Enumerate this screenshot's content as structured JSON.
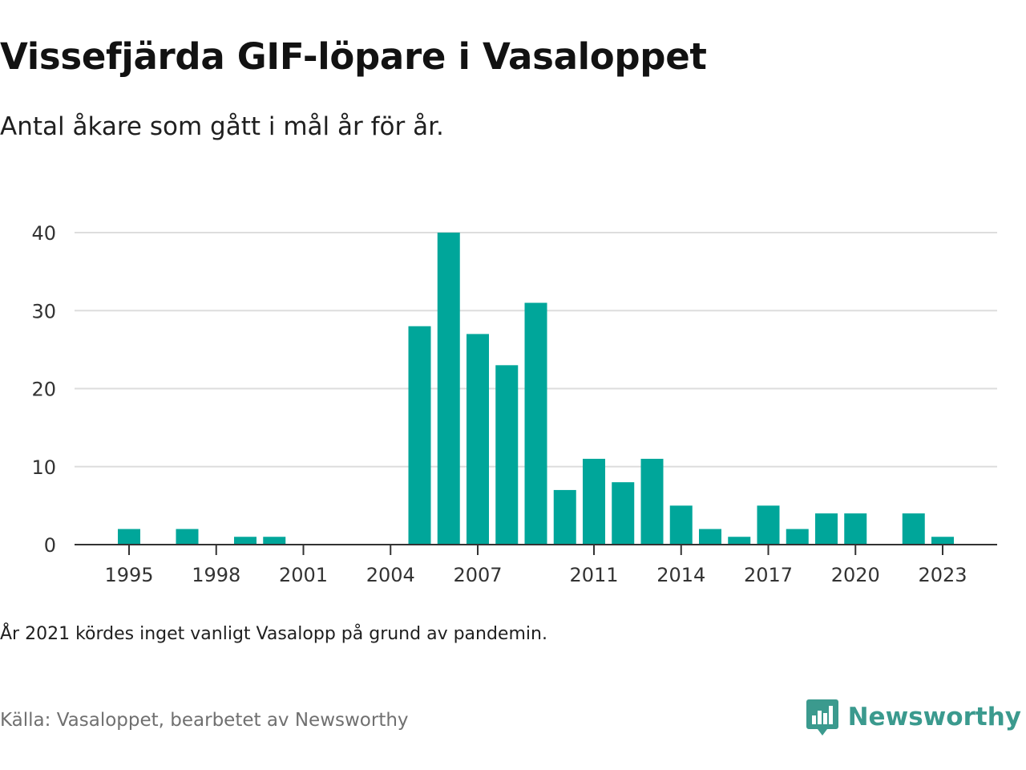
{
  "header": {
    "title": "Vissefjärda GIF-löpare i Vasaloppet",
    "subtitle": "Antal åkare som gått i mål år för år."
  },
  "footer": {
    "note": "År 2021 kördes inget vanligt Vasalopp på grund av pandemin.",
    "source": "Källa: Vasaloppet, bearbetet av Newsworthy",
    "brand": "Newsworthy"
  },
  "colors": {
    "bar": "#00a69a",
    "grid": "#dddddd",
    "axis": "#333333",
    "brand": "#3b9a8e"
  },
  "chart_data": {
    "type": "bar",
    "title": "Vissefjärda GIF-löpare i Vasaloppet",
    "subtitle": "Antal åkare som gått i mål år för år.",
    "xlabel": "",
    "ylabel": "",
    "ylim": [
      0,
      40
    ],
    "yticks": [
      0,
      10,
      20,
      30,
      40
    ],
    "xlim": [
      1994,
      2025
    ],
    "xticks": [
      1995,
      1998,
      2001,
      2004,
      2007,
      2011,
      2014,
      2017,
      2020,
      2023
    ],
    "grid": true,
    "legend": "none",
    "x": [
      1995,
      1997,
      1999,
      2000,
      2005,
      2006,
      2007,
      2008,
      2009,
      2010,
      2011,
      2012,
      2013,
      2014,
      2015,
      2016,
      2017,
      2018,
      2019,
      2020,
      2022,
      2023
    ],
    "values": [
      2,
      2,
      1,
      1,
      28,
      40,
      27,
      23,
      31,
      7,
      11,
      8,
      11,
      5,
      2,
      1,
      5,
      2,
      4,
      4,
      4,
      1
    ]
  }
}
